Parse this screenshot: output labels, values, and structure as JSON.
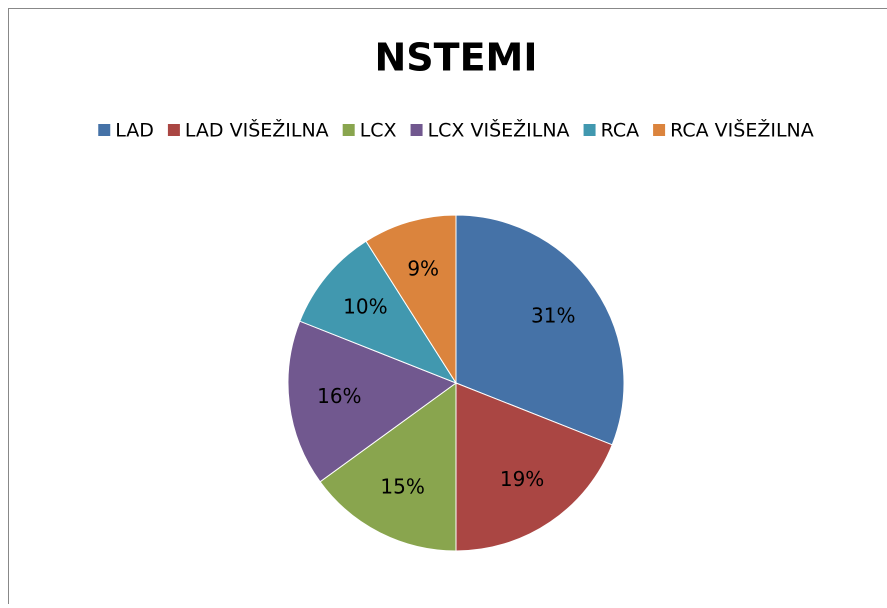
{
  "chart_data": {
    "type": "pie",
    "title": "NSTEMI",
    "categories": [
      "LAD",
      "LAD VIŠEŽILNA",
      "LCX",
      "LCX VIŠEŽILNA",
      "RCA",
      "RCA VIŠEŽILNA"
    ],
    "values": [
      31,
      19,
      15,
      16,
      10,
      9
    ],
    "value_labels": [
      "31%",
      "19%",
      "15%",
      "16%",
      "10%",
      "9%"
    ],
    "colors": [
      "#4572a7",
      "#aa4643",
      "#89a54e",
      "#71588f",
      "#4198af",
      "#db843d"
    ],
    "legend": "top"
  }
}
